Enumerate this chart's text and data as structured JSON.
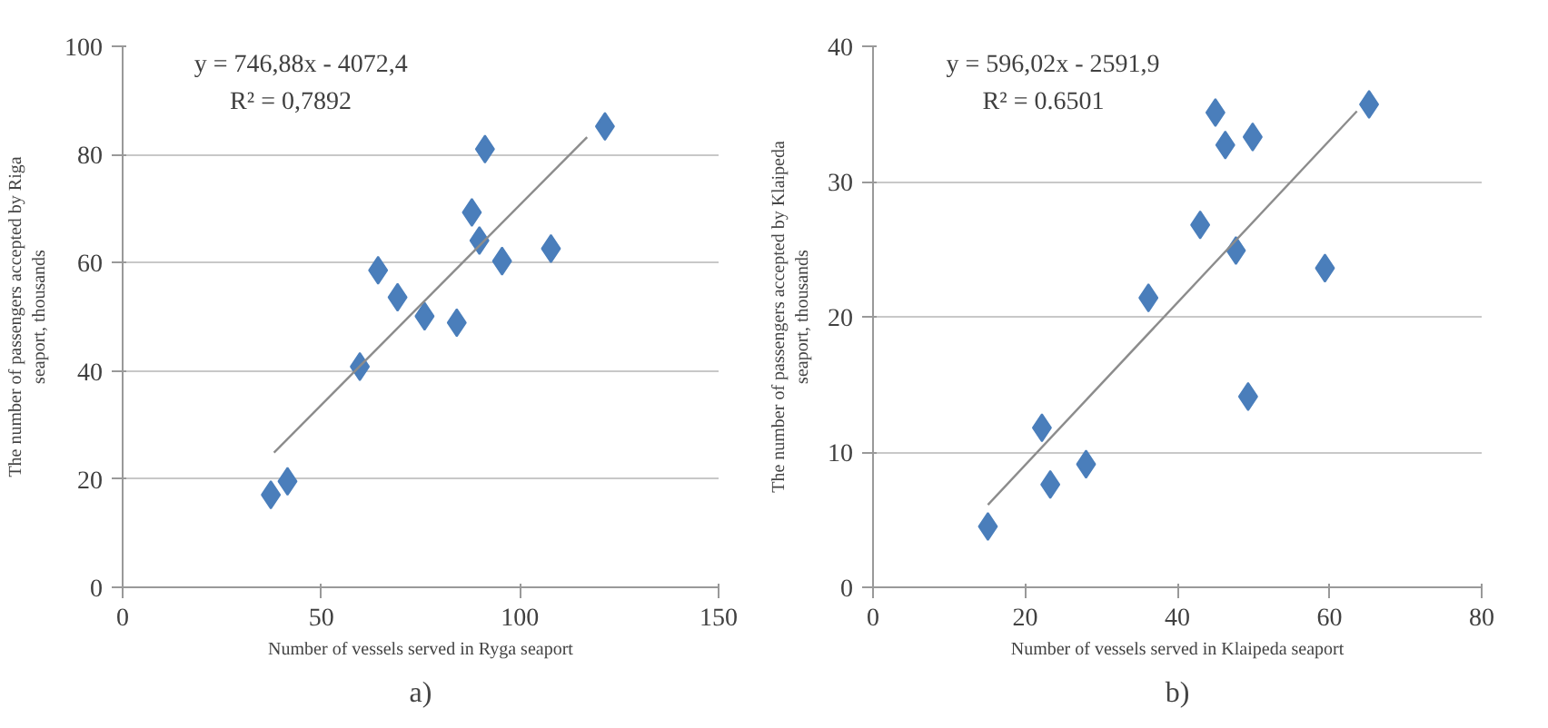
{
  "chart_data": [
    {
      "type": "scatter",
      "xlabel": "Number of vessels served in Ryga seaport",
      "ylabel": "The number of passengers accepted by Riga\nseaport, thousands",
      "xlim": [
        0,
        150
      ],
      "ylim": [
        0,
        100
      ],
      "xticks": [
        0,
        50,
        100,
        150
      ],
      "yticks": [
        0,
        20,
        40,
        60,
        80,
        100
      ],
      "grid": "y",
      "annotations": [
        "y = 746,88x - 4072,4",
        "R² = 0,7892",
        "a)"
      ],
      "series": [
        {
          "color": "#4a7ebb",
          "marker": "diamond",
          "x": [
            37.3,
            41.5,
            59.7,
            64.3,
            69.2,
            76,
            84.1,
            87.9,
            91.2,
            89.8,
            95.5,
            107.8,
            121.4
          ],
          "values": [
            17.1,
            19.6,
            40.8,
            58.6,
            53.6,
            50.1,
            48.9,
            69.3,
            81,
            64.1,
            60.3,
            62.6,
            85.2
          ]
        },
        {
          "type": "line",
          "color": "#8c8c8c",
          "x": [
            38.1,
            116.9
          ],
          "values": [
            24.9,
            83.2
          ]
        }
      ]
    },
    {
      "type": "scatter",
      "xlabel": "Number of vessels served in Klaipeda seaport",
      "ylabel": "The number of passengers accepted by Klaipeda\nseaport, thousands",
      "xlim": [
        0,
        80
      ],
      "ylim": [
        0,
        40
      ],
      "xticks": [
        0,
        20,
        40,
        60,
        80
      ],
      "yticks": [
        0,
        10,
        20,
        30,
        40
      ],
      "grid": "y",
      "annotations": [
        "y = 596,02x - 2591,9",
        "R² = 0.6501",
        "b)"
      ],
      "series": [
        {
          "color": "#4a7ebb",
          "marker": "diamond",
          "x": [
            15.1,
            22.2,
            23.3,
            28.0,
            36.2,
            43.0,
            45.0,
            46.3,
            49.9,
            47.7,
            49.3,
            59.4,
            65.2
          ],
          "values": [
            4.5,
            11.8,
            7.6,
            9.1,
            21.4,
            26.8,
            35.1,
            32.7,
            33.3,
            24.9,
            14.1,
            23.6,
            35.7
          ]
        },
        {
          "type": "line",
          "color": "#8c8c8c",
          "x": [
            15.1,
            63.6
          ],
          "values": [
            6.1,
            35.2
          ]
        }
      ]
    }
  ]
}
